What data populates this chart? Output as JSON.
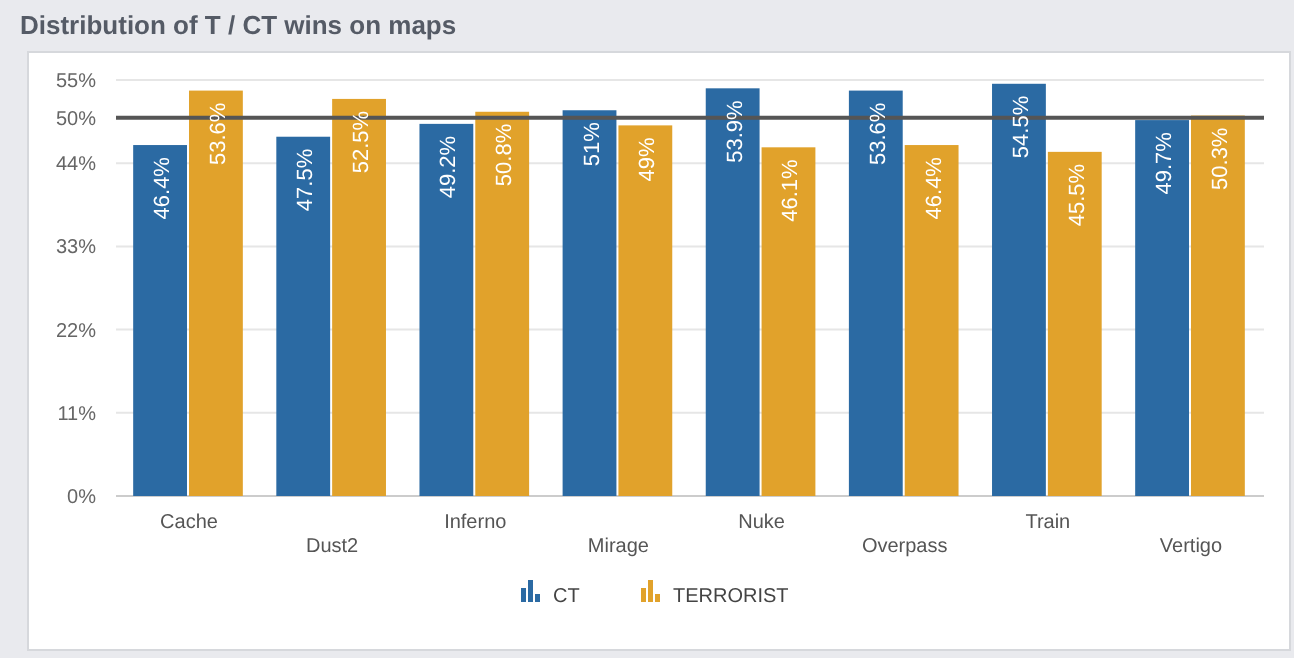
{
  "chart_data": {
    "type": "bar",
    "title": "Distribution of T / CT wins on maps",
    "categories": [
      "Cache",
      "Dust2",
      "Inferno",
      "Mirage",
      "Nuke",
      "Overpass",
      "Train",
      "Vertigo"
    ],
    "series": [
      {
        "name": "CT",
        "color": "#2b6aa3",
        "values": [
          46.4,
          47.5,
          49.2,
          51,
          53.9,
          53.6,
          54.5,
          49.7
        ],
        "value_labels": [
          "46.4%",
          "47.5%",
          "49.2%",
          "51%",
          "53.9%",
          "53.6%",
          "54.5%",
          "49.7%"
        ]
      },
      {
        "name": "TERRORIST",
        "color": "#e1a22b",
        "values": [
          53.6,
          52.5,
          50.8,
          49,
          46.1,
          46.4,
          45.5,
          50.3
        ],
        "value_labels": [
          "53.6%",
          "52.5%",
          "50.8%",
          "49%",
          "46.1%",
          "46.4%",
          "45.5%",
          "50.3%"
        ]
      }
    ],
    "ylim": [
      0,
      55
    ],
    "yticks": [
      {
        "value": 0,
        "label": "0%"
      },
      {
        "value": 11,
        "label": "11%"
      },
      {
        "value": 22,
        "label": "22%"
      },
      {
        "value": 33,
        "label": "33%"
      },
      {
        "value": 44,
        "label": "44%"
      },
      {
        "value": 50,
        "label": "50%"
      },
      {
        "value": 55,
        "label": "55%"
      }
    ],
    "grid": "y",
    "ref_lines": [
      {
        "axis": "y",
        "value": 50,
        "color": "#555555"
      }
    ],
    "legend": "bottom"
  }
}
